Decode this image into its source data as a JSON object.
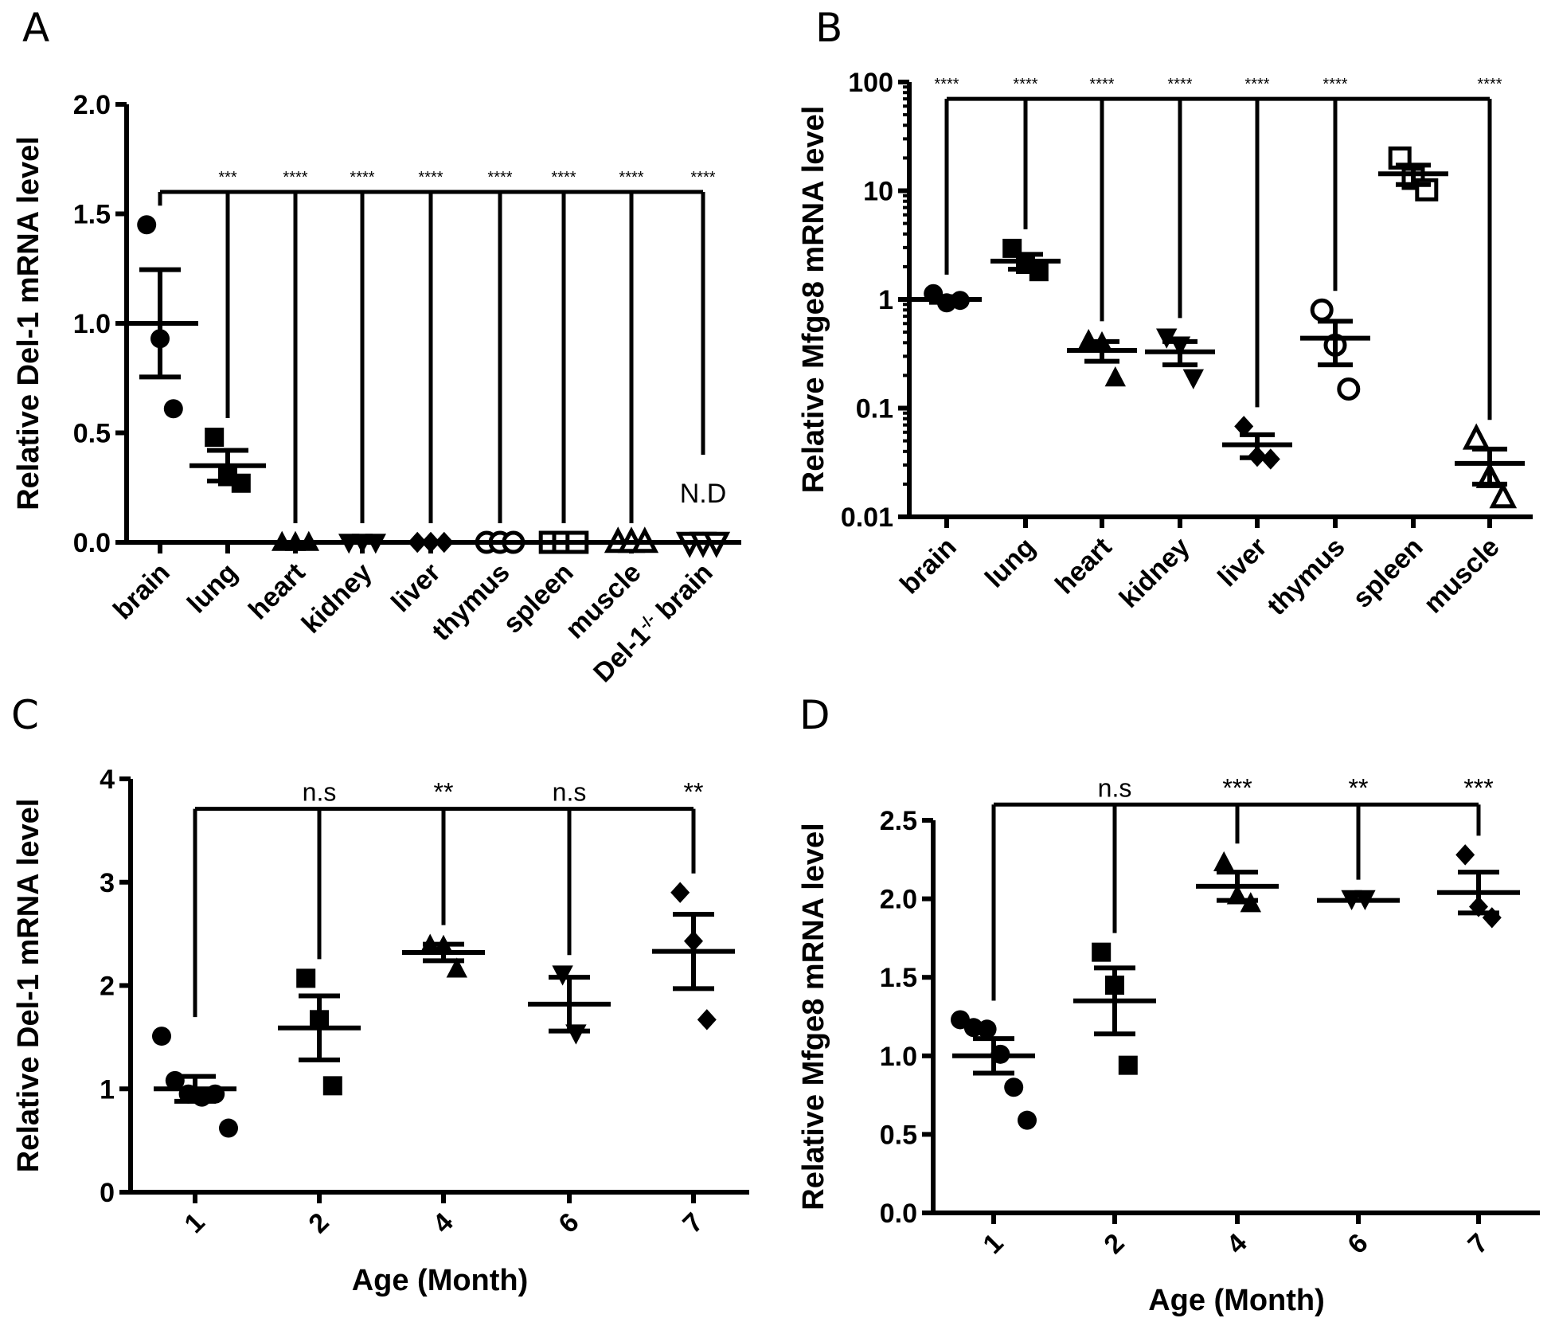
{
  "figure": {
    "panels": [
      "A",
      "B",
      "C",
      "D"
    ]
  },
  "chart_data": [
    {
      "panel": "A",
      "type": "scatter",
      "title": "",
      "ylabel": "Relative Del-1 mRNA level",
      "xlabel": "",
      "yscale": "linear",
      "ylim": [
        0,
        2.0
      ],
      "yticks": [
        "0.0",
        "0.5",
        "1.0",
        "1.5",
        "2.0"
      ],
      "ytick_values": [
        0,
        0.5,
        1.0,
        1.5,
        2.0
      ],
      "categories": [
        "brain",
        "lung",
        "heart",
        "kidney",
        "liver",
        "thymus",
        "spleen",
        "muscle",
        "Del-1-/- brain"
      ],
      "category_label_parts": [
        null,
        null,
        null,
        null,
        null,
        null,
        null,
        null,
        {
          "main": "Del-1",
          "sup": "-/-",
          "tail": " brain"
        }
      ],
      "markers": [
        "circle",
        "square",
        "triangle-up",
        "triangle-down",
        "diamond",
        "circle-open",
        "square-open",
        "triangle-open",
        "triangle-down-open"
      ],
      "points": [
        [
          1.45,
          0.93,
          0.61
        ],
        [
          0.48,
          0.3,
          0.27
        ],
        [
          0,
          0,
          0
        ],
        [
          0,
          0,
          0
        ],
        [
          0,
          0,
          0
        ],
        [
          0,
          0,
          0
        ],
        [
          0,
          0,
          0
        ],
        [
          0,
          0,
          0
        ],
        [
          0,
          0,
          0
        ]
      ],
      "means": [
        1.0,
        0.35,
        0,
        0,
        0,
        0,
        0,
        0,
        0
      ],
      "sem": [
        0.245,
        0.07,
        0,
        0,
        0,
        0,
        0,
        0,
        0
      ],
      "comparison": {
        "reference": "brain",
        "bracket_level": 1.6,
        "labels": [
          "",
          "***",
          "****",
          "****",
          "****",
          "****",
          "****",
          "****",
          "****"
        ]
      },
      "annotations": [
        {
          "category": "Del-1-/- brain",
          "text": "N.D"
        }
      ]
    },
    {
      "panel": "B",
      "type": "scatter",
      "title": "",
      "ylabel": "Relative Mfge8 mRNA level",
      "xlabel": "",
      "yscale": "log",
      "ylim": [
        0.01,
        100
      ],
      "yticks": [
        "0.01",
        "0.1",
        "1",
        "10",
        "100"
      ],
      "ytick_values": [
        0.01,
        0.1,
        1,
        10,
        100
      ],
      "categories": [
        "brain",
        "lung",
        "heart",
        "kidney",
        "liver",
        "thymus",
        "spleen",
        "muscle"
      ],
      "markers": [
        "circle",
        "square",
        "triangle-up",
        "triangle-down",
        "diamond",
        "circle-open",
        "square-open",
        "triangle-open"
      ],
      "points": [
        [
          1.13,
          0.93,
          0.98
        ],
        [
          2.95,
          2.1,
          1.8
        ],
        [
          0.42,
          0.4,
          0.19
        ],
        [
          0.45,
          0.38,
          0.19
        ],
        [
          0.068,
          0.036,
          0.034
        ],
        [
          0.8,
          0.38,
          0.15
        ],
        [
          20,
          13,
          10.2
        ],
        [
          0.052,
          0.023,
          0.015
        ]
      ],
      "means": [
        1.0,
        2.25,
        0.34,
        0.33,
        0.046,
        0.44,
        14.3,
        0.031
      ],
      "sem": [
        0.06,
        0.35,
        0.07,
        0.08,
        0.011,
        0.19,
        2.9,
        0.011
      ],
      "comparison": {
        "reference": "brain",
        "bracket_level": 70,
        "labels": [
          "****",
          "****",
          "****",
          "****",
          "****",
          "****",
          "",
          "****"
        ]
      }
    },
    {
      "panel": "C",
      "type": "scatter",
      "title": "",
      "ylabel": "Relative Del-1 mRNA level",
      "xlabel": "Age (Month)",
      "yscale": "linear",
      "ylim": [
        0,
        4
      ],
      "yticks": [
        "0",
        "1",
        "2",
        "3",
        "4"
      ],
      "ytick_values": [
        0,
        1,
        2,
        3,
        4
      ],
      "categories": [
        "1",
        "2",
        "4",
        "6",
        "7"
      ],
      "markers": [
        "circle",
        "square",
        "triangle-up",
        "triangle-down",
        "diamond"
      ],
      "points": [
        [
          1.51,
          1.08,
          0.95,
          0.92,
          0.95,
          0.62
        ],
        [
          2.07,
          1.67,
          1.03
        ],
        [
          2.39,
          2.38,
          2.16
        ],
        [
          2.11,
          1.54
        ],
        [
          2.9,
          2.43,
          1.67
        ]
      ],
      "means": [
        1.0,
        1.59,
        2.32,
        1.82,
        2.33
      ],
      "sem": [
        0.12,
        0.31,
        0.08,
        0.26,
        0.36
      ],
      "comparison": {
        "reference": "1",
        "bracket_level": 3.71,
        "labels": [
          "",
          "n.s",
          "**",
          "n.s",
          "**"
        ]
      }
    },
    {
      "panel": "D",
      "type": "scatter",
      "title": "",
      "ylabel": "Relative Mfge8 mRNA level",
      "xlabel": "Age (Month)",
      "yscale": "linear",
      "ylim": [
        0,
        2.5
      ],
      "yticks": [
        "0.0",
        "0.5",
        "1.0",
        "1.5",
        "2.0",
        "2.5"
      ],
      "ytick_values": [
        0,
        0.5,
        1.0,
        1.5,
        2.0,
        2.5
      ],
      "categories": [
        "1",
        "2",
        "4",
        "6",
        "7"
      ],
      "markers": [
        "circle",
        "square",
        "triangle-up",
        "triangle-down",
        "diamond"
      ],
      "points": [
        [
          1.23,
          1.18,
          1.17,
          1.01,
          0.8,
          0.59
        ],
        [
          1.66,
          1.45,
          0.94
        ],
        [
          2.23,
          2.02,
          1.97
        ],
        [
          2.0,
          2.0
        ],
        [
          2.28,
          1.95,
          1.88
        ]
      ],
      "means": [
        1.0,
        1.35,
        2.08,
        1.99,
        2.04
      ],
      "sem": [
        0.11,
        0.21,
        0.09,
        0.0,
        0.13
      ],
      "comparison": {
        "reference": "1",
        "bracket_level": 2.6,
        "labels": [
          "",
          "n.s",
          "***",
          "**",
          "***"
        ]
      }
    }
  ]
}
